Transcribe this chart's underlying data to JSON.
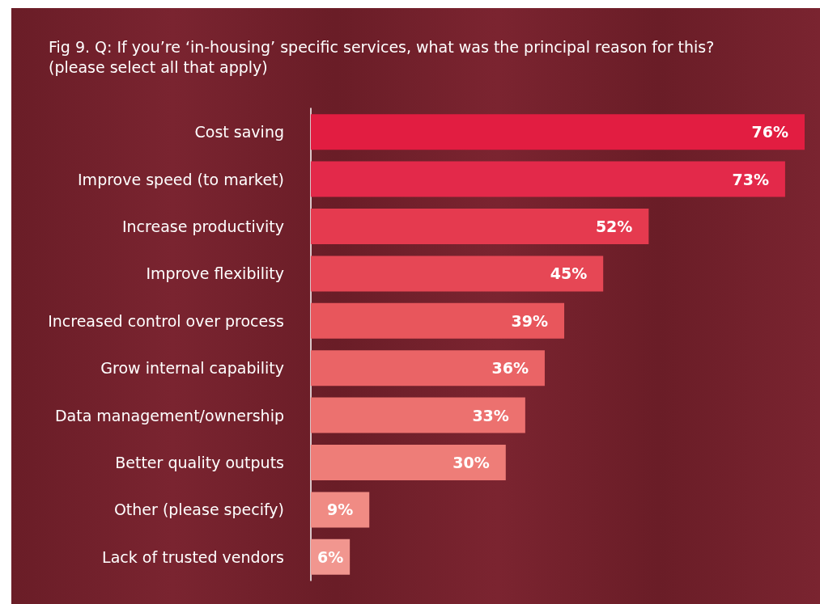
{
  "chart_data": {
    "type": "bar",
    "orientation": "horizontal",
    "title": "Fig 9. Q: If you’re ‘in-housing’ specific services, what was the principal reason for this? (please select all that apply)",
    "categories": [
      "Cost saving",
      "Improve speed (to market)",
      "Increase productivity",
      "Improve flexibility",
      "Increased control over process",
      "Grow internal capability",
      "Data management/ownership",
      "Better quality outputs",
      "Other (please specify)",
      "Lack of trusted vendors"
    ],
    "values": [
      76,
      73,
      52,
      45,
      39,
      36,
      33,
      30,
      9,
      6
    ],
    "value_labels": [
      "76%",
      "73%",
      "52%",
      "45%",
      "39%",
      "36%",
      "33%",
      "30%",
      "9%",
      "6%"
    ],
    "colors": [
      "#e21d41",
      "#e3294a",
      "#e53a4f",
      "#e64755",
      "#e8565c",
      "#ea6466",
      "#ec716f",
      "#ee7d78",
      "#f08b84",
      "#f1968f"
    ]
  }
}
